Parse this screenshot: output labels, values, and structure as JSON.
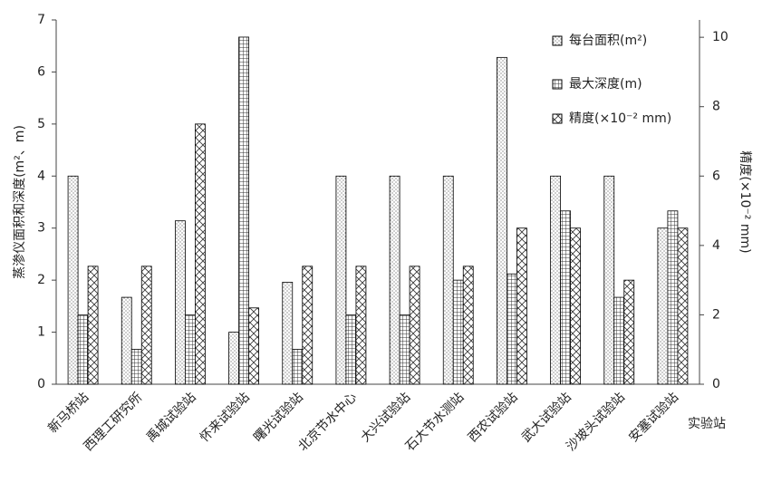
{
  "chart_data": {
    "type": "bar",
    "categories": [
      "新马桥站",
      "西理工研究所",
      "禹城试验站",
      "怀来试验站",
      "曙光试验站",
      "北京节水中心",
      "大兴试验站",
      "石大节水测站",
      "西农试验站",
      "武大试验站",
      "沙坡头试验站",
      "安塞试验站"
    ],
    "series": [
      {
        "name": "每台面积(m²)",
        "color": "#000000",
        "values": [
          4,
          1.67,
          3.14,
          1,
          1.96,
          4,
          4,
          4,
          6.28,
          4,
          4,
          3
        ]
      },
      {
        "name": "最大深度(m)",
        "color": "#000000",
        "values": [
          1.33,
          0.67,
          1.33,
          6.67,
          0.67,
          1.33,
          1.33,
          2,
          2.12,
          3.33,
          1.67,
          3.33
        ]
      },
      {
        "name": "精度(×10⁻² mm)",
        "color": "#000000",
        "axis": "y2",
        "values": [
          3.4,
          3.4,
          7.5,
          2.2,
          3.4,
          3.4,
          3.4,
          3.4,
          4.5,
          4.5,
          3,
          4.5
        ]
      }
    ],
    "x_label": "实验站",
    "y_label": "蒸渗仪面积和深度(m²、m)",
    "y2_label": "精度(×10⁻² mm)",
    "ylim": [
      0,
      7
    ],
    "yticks": [
      0,
      1,
      2,
      3,
      4,
      5,
      6,
      7
    ],
    "y2lim": [
      0,
      10.5
    ],
    "y2ticks": [
      0,
      2,
      4,
      6,
      8,
      10
    ],
    "legend": "upper right",
    "grid": false
  }
}
